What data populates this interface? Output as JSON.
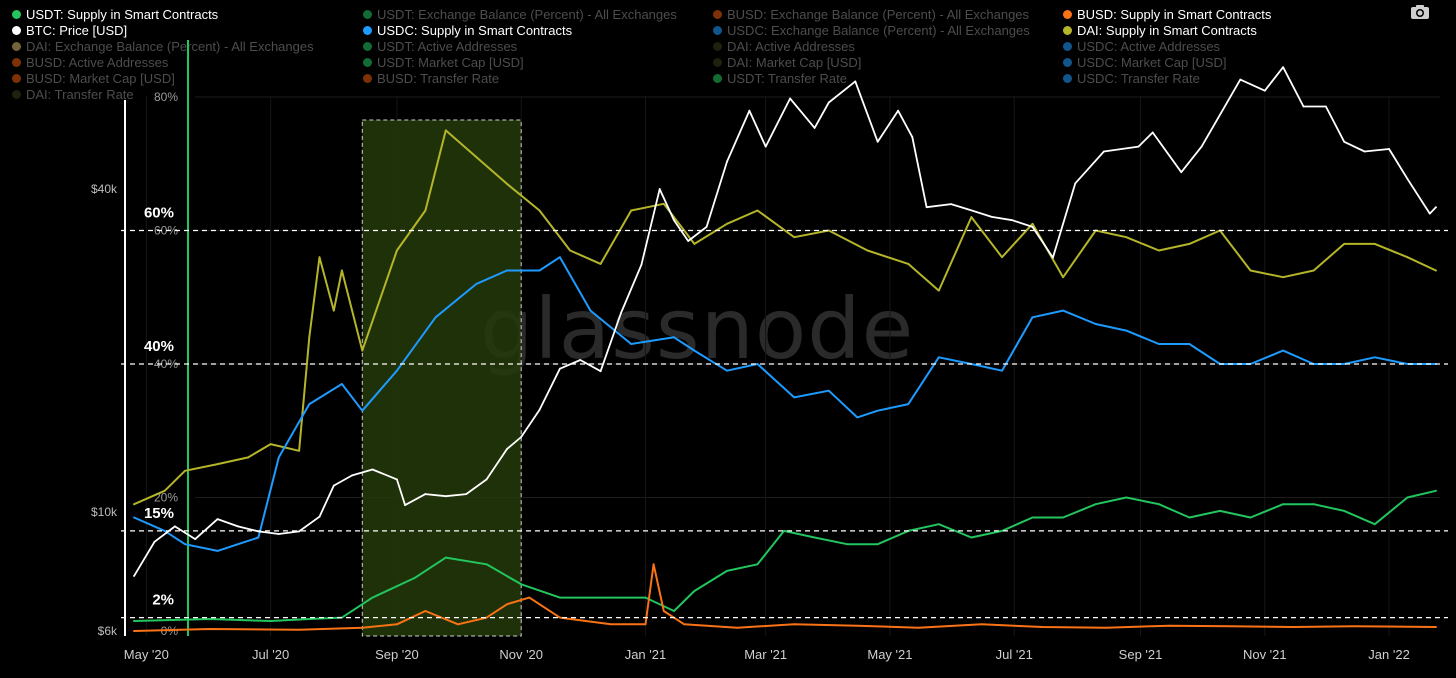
{
  "legend": [
    {
      "label": "USDT: Supply in Smart Contracts",
      "color": "#22c55e",
      "active": true
    },
    {
      "label": "USDT: Exchange Balance (Percent) - All Exchanges",
      "color": "#22c55e",
      "active": false
    },
    {
      "label": "BUSD: Exchange Balance (Percent) - All Exchanges",
      "color": "#ea580c",
      "active": false
    },
    {
      "label": "BUSD: Supply in Smart Contracts",
      "color": "#f97316",
      "active": true
    },
    {
      "label": "BTC: Price [USD]",
      "color": "#ffffff",
      "active": true
    },
    {
      "label": "USDC: Supply in Smart Contracts",
      "color": "#1e9bff",
      "active": true
    },
    {
      "label": "USDC: Exchange Balance (Percent) - All Exchanges",
      "color": "#1e9bff",
      "active": false
    },
    {
      "label": "DAI: Supply in Smart Contracts",
      "color": "#b5b52a",
      "active": true
    },
    {
      "label": "DAI: Exchange Balance (Percent) - All Exchanges",
      "color": "#d4b56a",
      "active": false
    },
    {
      "label": "USDT: Active Addresses",
      "color": "#22c55e",
      "active": false
    },
    {
      "label": "DAI: Active Addresses",
      "color": "#3a3a1a",
      "active": false
    },
    {
      "label": "USDC: Active Addresses",
      "color": "#1e9bff",
      "active": false
    },
    {
      "label": "BUSD: Active Addresses",
      "color": "#ea580c",
      "active": false
    },
    {
      "label": "USDT: Market Cap [USD]",
      "color": "#22c55e",
      "active": false
    },
    {
      "label": "DAI: Market Cap [USD]",
      "color": "#3a3a1a",
      "active": false
    },
    {
      "label": "USDC: Market Cap [USD]",
      "color": "#1e9bff",
      "active": false
    },
    {
      "label": "BUSD: Market Cap [USD]",
      "color": "#ea580c",
      "active": false
    },
    {
      "label": "BUSD: Transfer Rate",
      "color": "#ea580c",
      "active": false
    },
    {
      "label": "USDT: Transfer Rate",
      "color": "#22c55e",
      "active": false
    },
    {
      "label": "USDC: Transfer Rate",
      "color": "#1e9bff",
      "active": false
    },
    {
      "label": "DAI: Transfer Rate",
      "color": "#3a3a1a",
      "active": false
    }
  ],
  "watermark": "glassnode",
  "chart_data": {
    "type": "line",
    "x_tick_labels": [
      "May '20",
      "Jul '20",
      "Sep '20",
      "Nov '20",
      "Jan '21",
      "Mar '21",
      "May '21",
      "Jul '21",
      "Sep '21",
      "Nov '21",
      "Jan '22"
    ],
    "x_ticks": [
      "2020-05-01",
      "2020-07-01",
      "2020-09-01",
      "2020-11-01",
      "2021-01-01",
      "2021-03-01",
      "2021-05-01",
      "2021-07-01",
      "2021-09-01",
      "2021-11-01",
      "2022-01-01"
    ],
    "x_range": [
      "2020-04-22",
      "2022-01-26"
    ],
    "left_axis": {
      "scale": "log",
      "unit": "USD",
      "range": [
        5700,
        65000
      ],
      "ticks": [
        6000,
        10000,
        40000
      ],
      "tick_labels": [
        "$6k",
        "$10k",
        "$40k"
      ]
    },
    "right_axis": {
      "scale": "linear",
      "unit": "%",
      "range": [
        0,
        80
      ],
      "ticks": [
        0,
        20,
        40,
        60,
        80
      ],
      "tick_labels": [
        "0%",
        "20%",
        "40%",
        "60%",
        "80%"
      ]
    },
    "reference_lines": [
      {
        "value": 60,
        "label": "60%"
      },
      {
        "value": 40,
        "label": "40%"
      },
      {
        "value": 15,
        "label": "15%"
      },
      {
        "value": 2,
        "label": "2%"
      }
    ],
    "highlight_region": {
      "from": "2020-08-15",
      "to": "2020-11-01",
      "color": "#243a0a"
    },
    "grid": true,
    "legend_position": "top",
    "series": [
      {
        "name": "BTC: Price [USD]",
        "axis": "left",
        "color": "#ffffff",
        "x": [
          "2020-04-25",
          "2020-05-05",
          "2020-05-15",
          "2020-05-25",
          "2020-06-05",
          "2020-06-15",
          "2020-06-25",
          "2020-07-05",
          "2020-07-15",
          "2020-07-25",
          "2020-08-01",
          "2020-08-10",
          "2020-08-20",
          "2020-09-01",
          "2020-09-05",
          "2020-09-15",
          "2020-09-25",
          "2020-10-05",
          "2020-10-15",
          "2020-10-25",
          "2020-11-01",
          "2020-11-10",
          "2020-11-20",
          "2020-11-30",
          "2020-12-10",
          "2020-12-20",
          "2020-12-30",
          "2021-01-08",
          "2021-01-15",
          "2021-01-22",
          "2021-01-31",
          "2021-02-10",
          "2021-02-21",
          "2021-03-01",
          "2021-03-13",
          "2021-03-25",
          "2021-04-01",
          "2021-04-14",
          "2021-04-25",
          "2021-05-05",
          "2021-05-12",
          "2021-05-19",
          "2021-05-31",
          "2021-06-10",
          "2021-06-20",
          "2021-06-30",
          "2021-07-10",
          "2021-07-20",
          "2021-07-31",
          "2021-08-14",
          "2021-08-31",
          "2021-09-07",
          "2021-09-21",
          "2021-10-01",
          "2021-10-20",
          "2021-11-01",
          "2021-11-10",
          "2021-11-20",
          "2021-12-01",
          "2021-12-10",
          "2021-12-20",
          "2022-01-01",
          "2022-01-10",
          "2022-01-21",
          "2022-01-24"
        ],
        "values": [
          7600,
          8800,
          9400,
          8900,
          9700,
          9400,
          9200,
          9100,
          9200,
          9800,
          11200,
          11700,
          12000,
          11500,
          10300,
          10800,
          10700,
          10800,
          11500,
          13100,
          13800,
          15500,
          18500,
          19200,
          18300,
          23500,
          28900,
          40000,
          35000,
          32000,
          34000,
          45000,
          56000,
          48000,
          59000,
          52000,
          58000,
          63500,
          49000,
          56000,
          50000,
          37000,
          37500,
          36500,
          35500,
          35000,
          34000,
          29800,
          41000,
          47000,
          48000,
          51000,
          43000,
          48000,
          64000,
          61000,
          67500,
          57000,
          57000,
          49000,
          47000,
          47500,
          41800,
          36000,
          37000
        ]
      },
      {
        "name": "DAI: Supply in Smart Contracts",
        "axis": "right",
        "color": "#b5b52a",
        "x": [
          "2020-04-25",
          "2020-05-10",
          "2020-05-20",
          "2020-06-05",
          "2020-06-20",
          "2020-07-01",
          "2020-07-15",
          "2020-07-20",
          "2020-07-25",
          "2020-08-01",
          "2020-08-05",
          "2020-08-15",
          "2020-09-01",
          "2020-09-15",
          "2020-09-25",
          "2020-10-10",
          "2020-10-25",
          "2020-11-10",
          "2020-11-25",
          "2020-12-10",
          "2020-12-25",
          "2021-01-10",
          "2021-01-25",
          "2021-02-10",
          "2021-02-25",
          "2021-03-15",
          "2021-04-01",
          "2021-04-20",
          "2021-05-10",
          "2021-05-25",
          "2021-06-10",
          "2021-06-25",
          "2021-07-10",
          "2021-07-25",
          "2021-08-10",
          "2021-08-25",
          "2021-09-10",
          "2021-09-25",
          "2021-10-10",
          "2021-10-25",
          "2021-11-10",
          "2021-11-25",
          "2021-12-10",
          "2021-12-25",
          "2022-01-10",
          "2022-01-24"
        ],
        "values": [
          19,
          21,
          24,
          25,
          26,
          28,
          27,
          44,
          56,
          48,
          54,
          42,
          57,
          63,
          75,
          71,
          67,
          63,
          57,
          55,
          63,
          64,
          58,
          61,
          63,
          59,
          60,
          57,
          55,
          51,
          62,
          56,
          61,
          53,
          60,
          59,
          57,
          58,
          60,
          54,
          53,
          54,
          58,
          58,
          56,
          54
        ]
      },
      {
        "name": "USDC: Supply in Smart Contracts",
        "axis": "right",
        "color": "#1e9bff",
        "x": [
          "2020-04-25",
          "2020-05-10",
          "2020-05-20",
          "2020-06-05",
          "2020-06-15",
          "2020-06-25",
          "2020-07-05",
          "2020-07-20",
          "2020-08-05",
          "2020-08-15",
          "2020-09-01",
          "2020-09-20",
          "2020-10-10",
          "2020-10-25",
          "2020-11-10",
          "2020-11-20",
          "2020-12-05",
          "2020-12-25",
          "2021-01-15",
          "2021-01-25",
          "2021-02-10",
          "2021-02-25",
          "2021-03-15",
          "2021-04-01",
          "2021-04-15",
          "2021-04-25",
          "2021-05-10",
          "2021-05-25",
          "2021-06-10",
          "2021-06-25",
          "2021-07-10",
          "2021-07-25",
          "2021-08-10",
          "2021-08-25",
          "2021-09-10",
          "2021-09-25",
          "2021-10-10",
          "2021-10-25",
          "2021-11-10",
          "2021-11-25",
          "2021-12-10",
          "2021-12-25",
          "2022-01-10",
          "2022-01-24"
        ],
        "values": [
          17,
          15,
          13,
          12,
          13,
          14,
          26,
          34,
          37,
          33,
          39,
          47,
          52,
          54,
          54,
          56,
          48,
          43,
          44,
          42,
          39,
          40,
          35,
          36,
          32,
          33,
          34,
          41,
          40,
          39,
          47,
          48,
          46,
          45,
          43,
          43,
          40,
          40,
          42,
          40,
          40,
          41,
          40,
          40
        ]
      },
      {
        "name": "USDT: Supply in Smart Contracts",
        "axis": "right",
        "color": "#22c55e",
        "x": [
          "2020-04-25",
          "2020-06-01",
          "2020-07-01",
          "2020-07-20",
          "2020-08-05",
          "2020-08-20",
          "2020-09-10",
          "2020-09-25",
          "2020-10-15",
          "2020-11-01",
          "2020-11-20",
          "2020-12-15",
          "2021-01-01",
          "2021-01-15",
          "2021-01-25",
          "2021-02-10",
          "2021-02-25",
          "2021-03-10",
          "2021-03-25",
          "2021-04-10",
          "2021-04-25",
          "2021-05-10",
          "2021-05-25",
          "2021-06-10",
          "2021-06-25",
          "2021-07-10",
          "2021-07-25",
          "2021-08-10",
          "2021-08-25",
          "2021-09-10",
          "2021-09-25",
          "2021-10-10",
          "2021-10-25",
          "2021-11-10",
          "2021-11-25",
          "2021-12-10",
          "2021-12-25",
          "2022-01-10",
          "2022-01-24"
        ],
        "values": [
          1.5,
          1.8,
          1.5,
          1.8,
          2,
          5,
          8,
          11,
          10,
          7,
          5,
          5,
          5,
          3,
          6,
          9,
          10,
          15,
          14,
          13,
          13,
          15,
          16,
          14,
          15,
          17,
          17,
          19,
          20,
          19,
          17,
          18,
          17,
          19,
          19,
          18,
          16,
          20,
          21
        ]
      },
      {
        "name": "BUSD: Supply in Smart Contracts",
        "axis": "right",
        "color": "#f97316",
        "x": [
          "2020-04-25",
          "2020-06-01",
          "2020-07-15",
          "2020-08-15",
          "2020-09-01",
          "2020-09-15",
          "2020-10-01",
          "2020-10-15",
          "2020-10-25",
          "2020-11-05",
          "2020-11-20",
          "2020-12-15",
          "2021-01-01",
          "2021-01-05",
          "2021-01-10",
          "2021-01-20",
          "2021-02-15",
          "2021-03-15",
          "2021-04-15",
          "2021-05-15",
          "2021-06-15",
          "2021-07-15",
          "2021-08-15",
          "2021-09-15",
          "2021-10-15",
          "2021-11-15",
          "2021-12-15",
          "2022-01-24"
        ],
        "values": [
          0,
          0.3,
          0.2,
          0.5,
          1,
          3,
          1,
          2,
          4,
          5,
          2,
          1,
          1,
          10,
          3,
          1,
          0.5,
          1,
          0.8,
          0.5,
          1,
          0.6,
          0.5,
          0.8,
          0.7,
          0.6,
          0.7,
          0.6
        ]
      }
    ]
  }
}
